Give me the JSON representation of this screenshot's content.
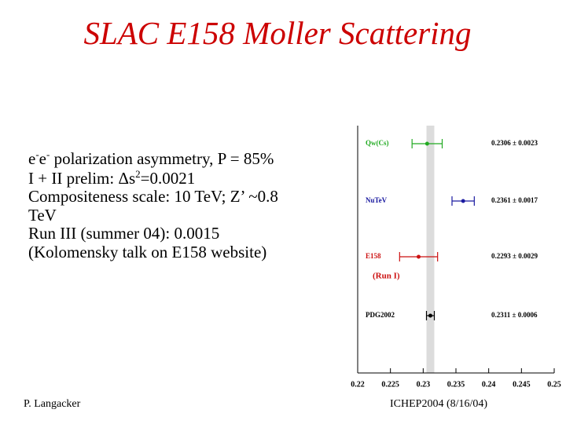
{
  "title": "SLAC E158 Moller Scattering",
  "body": [
    {
      "parts": [
        {
          "text": "e"
        },
        {
          "sup": "-"
        },
        {
          "text": "e"
        },
        {
          "sup": "-"
        },
        {
          "text": " polarization asymmetry, P = 85%"
        }
      ]
    },
    {
      "parts": [
        {
          "text": "I + II prelim: Δs"
        },
        {
          "sup": "2"
        },
        {
          "text": "=0.0021"
        }
      ]
    },
    {
      "parts": [
        {
          "text": "Compositeness scale: 10 TeV; Z’ ~0.8 TeV"
        }
      ]
    },
    {
      "parts": [
        {
          "text": "Run III (summer 04): 0.0015"
        }
      ]
    },
    {
      "parts": [
        {
          "text": "(Kolomensky talk on E158 website)"
        }
      ]
    }
  ],
  "footer": {
    "left": "P. Langacker",
    "right": "ICHEP2004 (8/16/04)"
  },
  "chart_data": {
    "type": "errorbar",
    "categories": [
      "Qw(Cs)",
      "NuTeV",
      "E158",
      "PDG2002"
    ],
    "values": [
      0.2306,
      0.2361,
      0.2293,
      0.2311
    ],
    "errors": [
      0.0023,
      0.0017,
      0.0029,
      0.0006
    ],
    "value_labels": [
      "0.2306 ± 0.0023",
      "0.2361 ± 0.0017",
      "0.2293 ± 0.0029",
      "0.2311 ± 0.0006"
    ],
    "colors": [
      "#22aa22",
      "#1a1aa0",
      "#cc1111",
      "#000000"
    ],
    "annotation": "(Run I)",
    "xlim": [
      0.22,
      0.25
    ],
    "xticks": [
      0.22,
      0.225,
      0.23,
      0.235,
      0.24,
      0.245,
      0.25
    ]
  }
}
